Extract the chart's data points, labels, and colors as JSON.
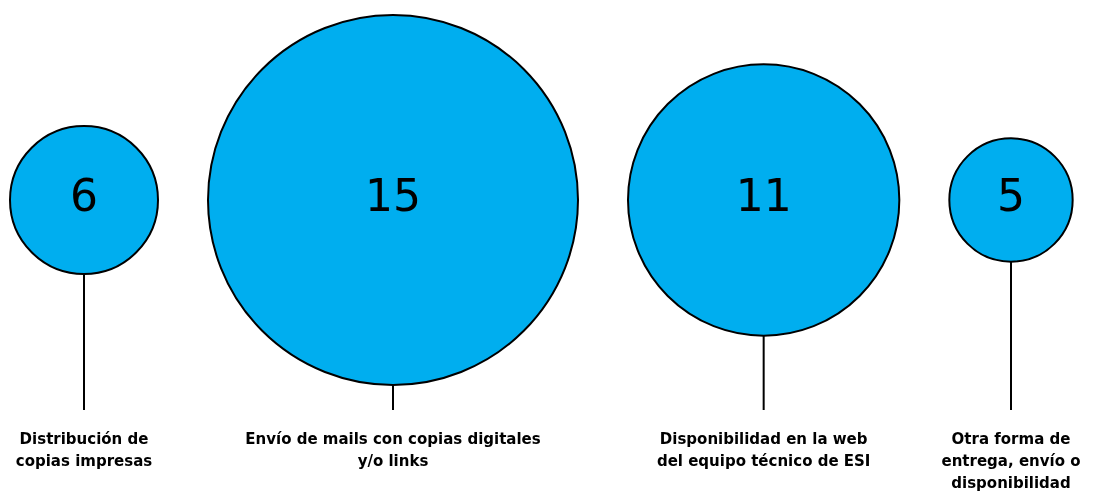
{
  "chart_data": {
    "type": "other",
    "categories": [
      "Distribución de copias impresas",
      "Envío de mails con copias digitales y/o links",
      "Disponibilidad en la web del equipo técnico de ESI",
      "Otra forma de entrega, envío o disponibilidad"
    ],
    "values": [
      6,
      15,
      11,
      5
    ],
    "color": "#00aeef",
    "data_labels": true
  }
}
